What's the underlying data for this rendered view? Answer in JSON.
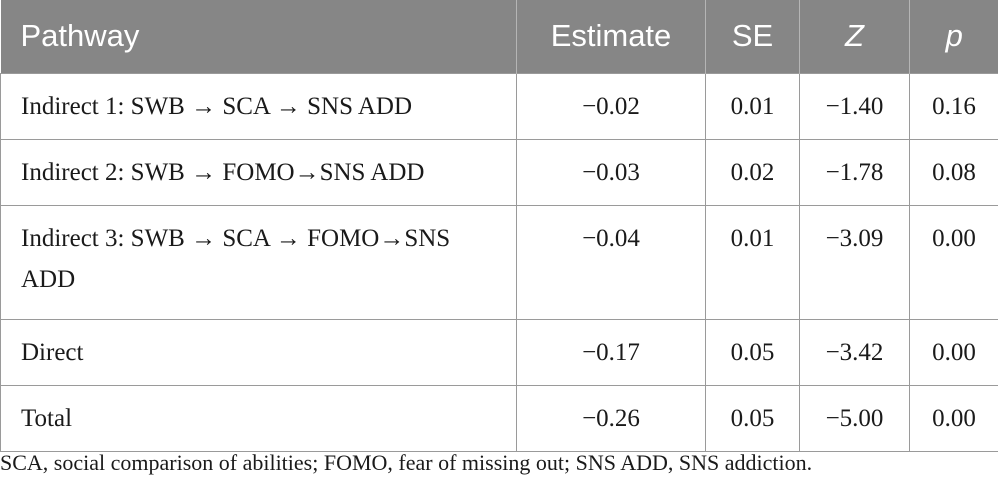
{
  "table": {
    "headers": [
      "Pathway",
      "Estimate",
      "SE",
      "Z",
      "p"
    ],
    "rows": [
      {
        "pathway": "Indirect 1: SWB → SCA → SNS ADD",
        "estimate": "−0.02",
        "se": "0.01",
        "z": "−1.40",
        "p": "0.16"
      },
      {
        "pathway": "Indirect 2: SWB → FOMO→SNS ADD",
        "estimate": "−0.03",
        "se": "0.02",
        "z": "−1.78",
        "p": "0.08"
      },
      {
        "pathway": "Indirect 3: SWB → SCA → FOMO→SNS ADD",
        "estimate": "−0.04",
        "se": "0.01",
        "z": "−3.09",
        "p": "0.00"
      },
      {
        "pathway": "Direct",
        "estimate": "−0.17",
        "se": "0.05",
        "z": "−3.42",
        "p": "0.00"
      },
      {
        "pathway": "Total",
        "estimate": "−0.26",
        "se": "0.05",
        "z": "−5.00",
        "p": "0.00"
      }
    ]
  },
  "footnote": "SCA, social comparison of abilities; FOMO, fear of missing out; SNS ADD, SNS addiction.",
  "colors": {
    "header_bg": "#868686",
    "header_text": "#ffffff",
    "border": "#9a9a9a"
  }
}
